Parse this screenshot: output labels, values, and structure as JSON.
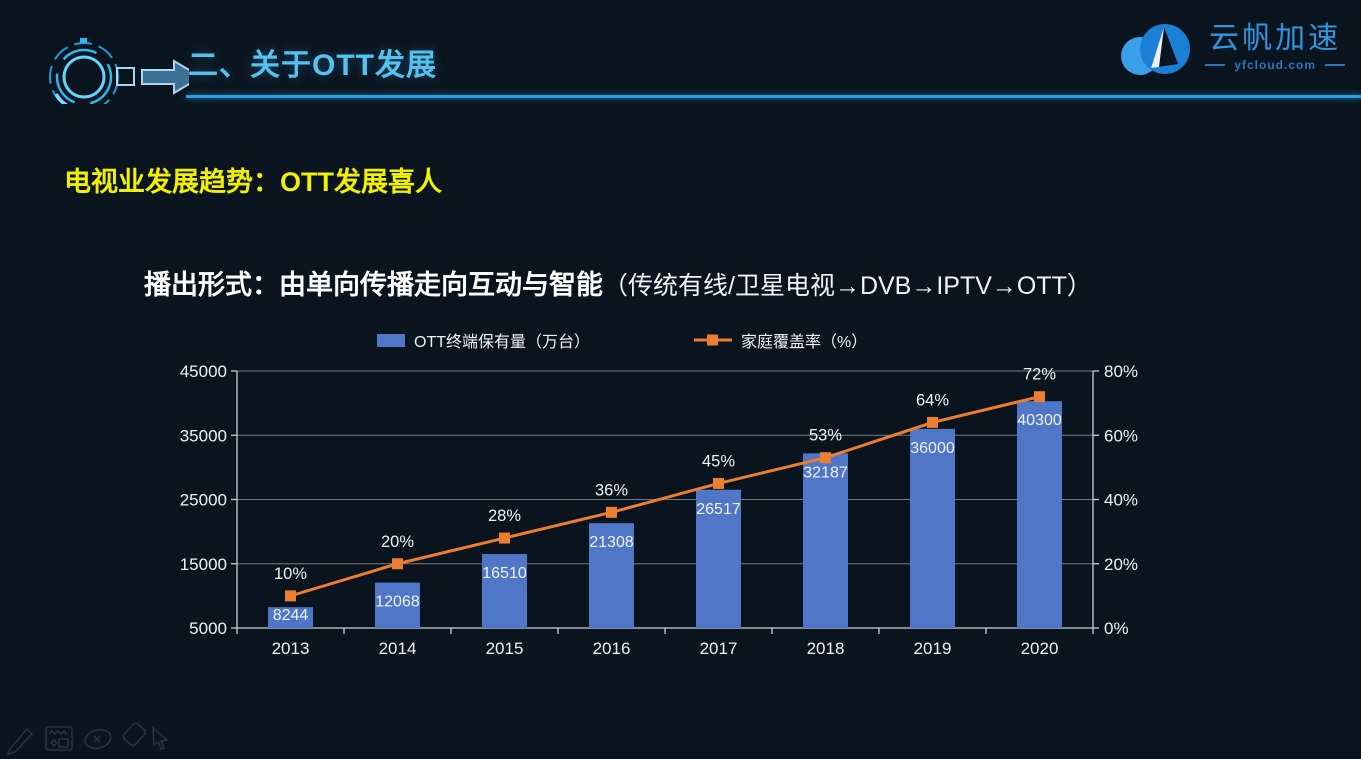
{
  "colors": {
    "background": "#0a141e",
    "accent_cyan": "#55c1ef",
    "divider_blue": "#1aa6e6",
    "heading_yellow": "#f0f000",
    "bar_blue": "#4f76c7",
    "line_orange": "#ED7D31",
    "logo_blue": "#2e96e0"
  },
  "header": {
    "title": "二、关于OTT发展",
    "logo": {
      "name": "云帆加速",
      "domain": "yfcloud.com"
    }
  },
  "headings": {
    "trend": "电视业发展趋势：OTT发展喜人",
    "subtitle_main": "播出形式：由单向传播走向互动与智能",
    "subtitle_paren": "（传统有线/卫星电视→DVB→IPTV→OTT）"
  },
  "legend": {
    "bar_label": "OTT终端保有量（万台）",
    "line_label": "家庭覆盖率（%）"
  },
  "chart_data": {
    "type": "bar",
    "subtype": "bar-line-combo",
    "categories": [
      "2013",
      "2014",
      "2015",
      "2016",
      "2017",
      "2018",
      "2019",
      "2020"
    ],
    "series": [
      {
        "name": "OTT终端保有量（万台）",
        "type": "bar",
        "axis": "left",
        "color": "#4f76c7",
        "values": [
          8244,
          12068,
          16510,
          21308,
          26517,
          32187,
          36000,
          40300
        ]
      },
      {
        "name": "家庭覆盖率（%）",
        "type": "line",
        "axis": "right",
        "color": "#ED7D31",
        "values": [
          10,
          20,
          28,
          36,
          45,
          53,
          64,
          72
        ],
        "labels": [
          "10%",
          "20%",
          "28%",
          "36%",
          "45%",
          "53%",
          "64%",
          "72%"
        ]
      }
    ],
    "left_axis": {
      "min": 5000,
      "max": 45000,
      "step": 10000,
      "ticks": [
        "5000",
        "15000",
        "25000",
        "35000",
        "45000"
      ]
    },
    "right_axis": {
      "min": 0,
      "max": 80,
      "step": 20,
      "ticks": [
        "0%",
        "20%",
        "40%",
        "60%",
        "80%"
      ]
    },
    "grid": true,
    "legend_position": "top"
  },
  "toolbar": {
    "icons": [
      "pen",
      "annotation-panel",
      "laser-pointer",
      "eraser",
      "cursor"
    ]
  }
}
